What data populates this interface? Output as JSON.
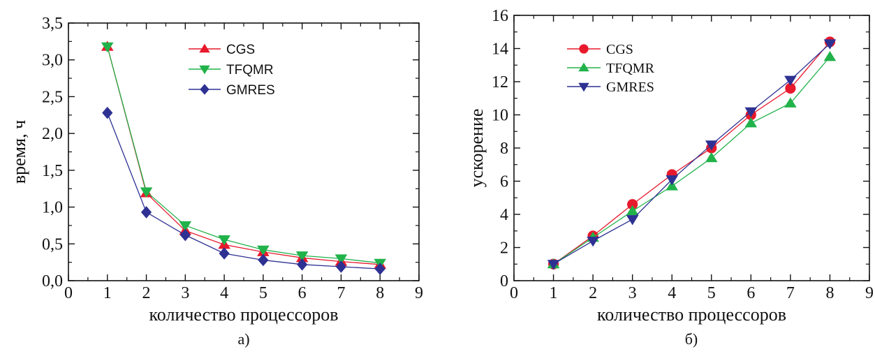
{
  "chart_data": [
    {
      "type": "line",
      "title": "",
      "caption": "а)",
      "xlabel": "количество процессоров",
      "ylabel": "время, ч",
      "xlim": [
        0,
        9
      ],
      "ylim": [
        0,
        3.5
      ],
      "x_ticks": [
        0,
        1,
        2,
        3,
        4,
        5,
        6,
        7,
        8,
        9
      ],
      "x_tick_labels": [
        "0",
        "1",
        "2",
        "3",
        "4",
        "5",
        "6",
        "7",
        "8",
        "9"
      ],
      "y_ticks": [
        0,
        0.5,
        1.0,
        1.5,
        2.0,
        2.5,
        3.0,
        3.5
      ],
      "y_tick_labels": [
        "0,0",
        "0,5",
        "1,0",
        "1,5",
        "2,0",
        "2,5",
        "3,0",
        "3,5"
      ],
      "grid": false,
      "legend_position": "top-center",
      "x": [
        1,
        2,
        3,
        4,
        5,
        6,
        7,
        8
      ],
      "series": [
        {
          "name": "CGS",
          "color": "#e8192c",
          "marker": "triangle-up",
          "values": [
            3.18,
            1.19,
            0.68,
            0.49,
            0.39,
            0.31,
            0.26,
            0.22
          ]
        },
        {
          "name": "TFQMR",
          "color": "#21b24a",
          "marker": "triangle-down",
          "values": [
            3.18,
            1.21,
            0.75,
            0.56,
            0.42,
            0.34,
            0.3,
            0.24
          ]
        },
        {
          "name": "GMRES",
          "color": "#2e3192",
          "marker": "diamond",
          "values": [
            2.28,
            0.93,
            0.62,
            0.37,
            0.28,
            0.22,
            0.19,
            0.16
          ]
        }
      ]
    },
    {
      "type": "line",
      "title": "",
      "caption": "б)",
      "xlabel": "количество процессоров",
      "ylabel": "ускорение",
      "xlim": [
        0,
        9
      ],
      "ylim": [
        0,
        16
      ],
      "x_ticks": [
        0,
        1,
        2,
        3,
        4,
        5,
        6,
        7,
        8,
        9
      ],
      "x_tick_labels": [
        "0",
        "1",
        "2",
        "3",
        "4",
        "5",
        "6",
        "7",
        "8",
        "9"
      ],
      "y_ticks": [
        0,
        2,
        4,
        6,
        8,
        10,
        12,
        14,
        16
      ],
      "y_tick_labels": [
        "0",
        "2",
        "4",
        "6",
        "8",
        "10",
        "12",
        "14",
        "16"
      ],
      "grid": false,
      "legend_position": "top-left",
      "x": [
        1,
        2,
        3,
        4,
        5,
        6,
        7,
        8
      ],
      "series": [
        {
          "name": "CGS",
          "color": "#e8192c",
          "marker": "circle",
          "values": [
            1.0,
            2.7,
            4.6,
            6.4,
            8.0,
            10.0,
            11.6,
            14.4
          ]
        },
        {
          "name": "TFQMR",
          "color": "#21b24a",
          "marker": "triangle-up",
          "values": [
            1.0,
            2.6,
            4.2,
            5.7,
            7.4,
            9.5,
            10.7,
            13.5
          ]
        },
        {
          "name": "GMRES",
          "color": "#2e3192",
          "marker": "triangle-down",
          "values": [
            1.0,
            2.4,
            3.7,
            6.1,
            8.2,
            10.2,
            12.1,
            14.3
          ]
        }
      ]
    }
  ]
}
